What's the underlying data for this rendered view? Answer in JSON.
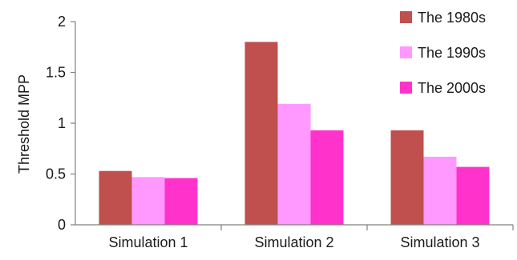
{
  "chart_data": {
    "type": "bar",
    "title": "",
    "xlabel": "",
    "ylabel": "Threshold MPP",
    "categories": [
      "Simulation 1",
      "Simulation 2",
      "Simulation 3"
    ],
    "series": [
      {
        "name": "The 1980s",
        "color": "#c0504d",
        "values": [
          0.53,
          1.8,
          0.93
        ]
      },
      {
        "name": "The 1990s",
        "color": "#ff99ff",
        "values": [
          0.47,
          1.19,
          0.67
        ]
      },
      {
        "name": "The 2000s",
        "color": "#ff33cc",
        "values": [
          0.46,
          0.93,
          0.57
        ]
      }
    ],
    "ylim": [
      0,
      2
    ],
    "yticks": [
      "0",
      "0.5",
      "1",
      "1.5",
      "2"
    ],
    "grid": false,
    "legend_position": "top-right"
  }
}
